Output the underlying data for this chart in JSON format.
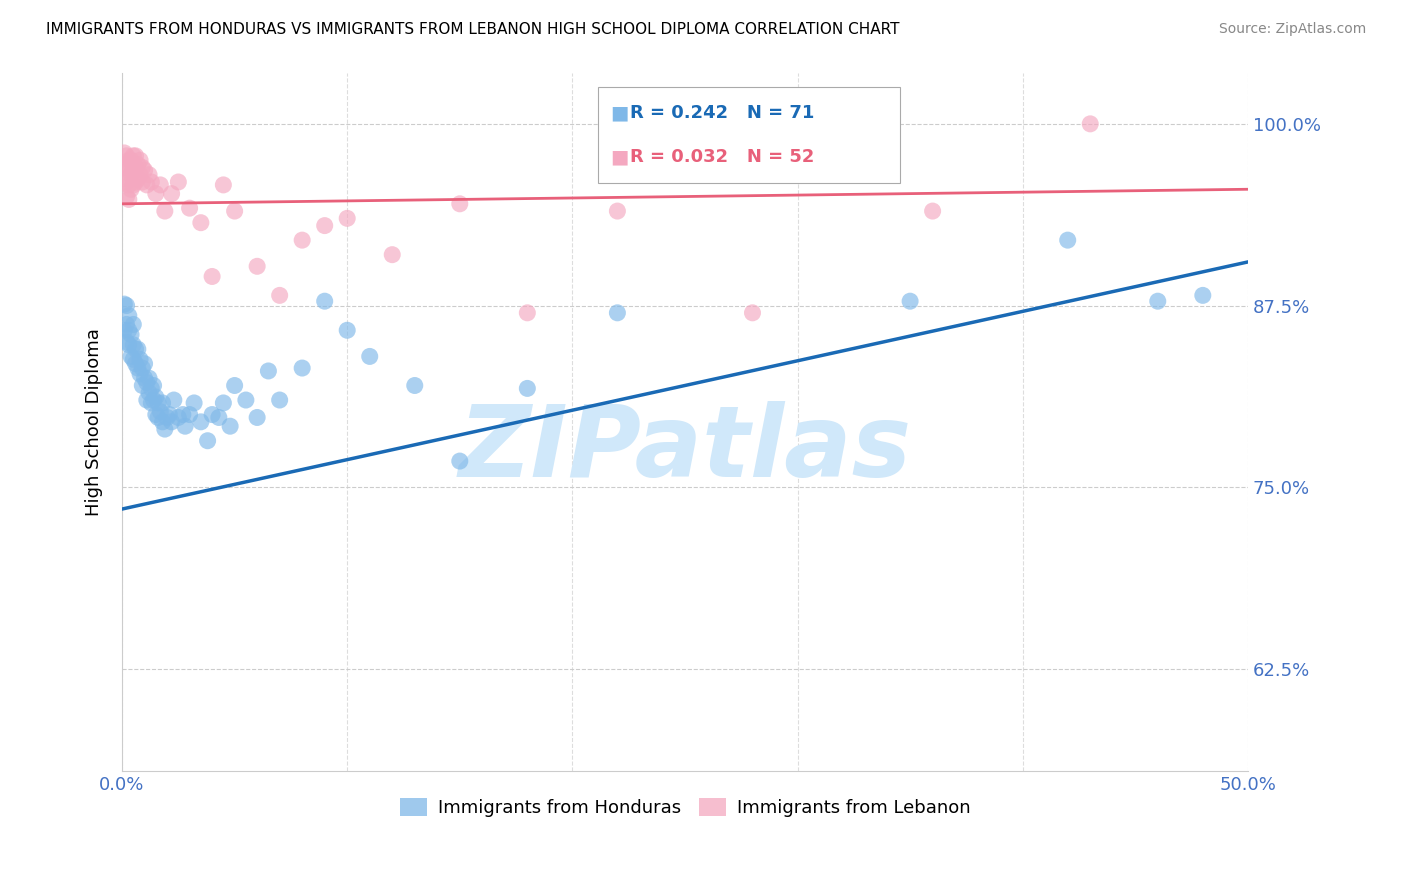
{
  "title": "IMMIGRANTS FROM HONDURAS VS IMMIGRANTS FROM LEBANON HIGH SCHOOL DIPLOMA CORRELATION CHART",
  "source": "Source: ZipAtlas.com",
  "ylabel": "High School Diploma",
  "xlim": [
    0.0,
    0.5
  ],
  "ylim": [
    0.555,
    1.035
  ],
  "xtick_positions": [
    0.0,
    0.1,
    0.2,
    0.3,
    0.4,
    0.5
  ],
  "xticklabels": [
    "0.0%",
    "",
    "",
    "",
    "",
    "50.0%"
  ],
  "ytick_positions": [
    0.625,
    0.75,
    0.875,
    1.0
  ],
  "yticklabels": [
    "62.5%",
    "75.0%",
    "87.5%",
    "100.0%"
  ],
  "legend1_label": "Immigrants from Honduras",
  "legend2_label": "Immigrants from Lebanon",
  "R1": "0.242",
  "N1": "71",
  "R2": "0.032",
  "N2": "52",
  "blue_color": "#7fb8e8",
  "pink_color": "#f4a8c0",
  "blue_line_color": "#1a6ab5",
  "pink_line_color": "#e8607a",
  "axis_label_color": "#4472c4",
  "watermark_text": "ZIPatlas",
  "watermark_color": "#d0e8fa",
  "title_fontsize": 11,
  "blue_line_x0": 0.0,
  "blue_line_y0": 0.735,
  "blue_line_x1": 0.5,
  "blue_line_y1": 0.905,
  "pink_line_x0": 0.0,
  "pink_line_y0": 0.945,
  "pink_line_x1": 0.5,
  "pink_line_y1": 0.955,
  "blue_x": [
    0.001,
    0.001,
    0.002,
    0.002,
    0.002,
    0.003,
    0.003,
    0.003,
    0.004,
    0.004,
    0.005,
    0.005,
    0.005,
    0.006,
    0.006,
    0.007,
    0.007,
    0.008,
    0.008,
    0.009,
    0.009,
    0.01,
    0.01,
    0.011,
    0.011,
    0.012,
    0.012,
    0.013,
    0.013,
    0.014,
    0.014,
    0.015,
    0.015,
    0.016,
    0.016,
    0.017,
    0.018,
    0.018,
    0.019,
    0.02,
    0.021,
    0.022,
    0.023,
    0.025,
    0.027,
    0.028,
    0.03,
    0.032,
    0.035,
    0.038,
    0.04,
    0.043,
    0.045,
    0.048,
    0.05,
    0.055,
    0.06,
    0.065,
    0.07,
    0.08,
    0.09,
    0.1,
    0.11,
    0.13,
    0.15,
    0.18,
    0.22,
    0.35,
    0.42,
    0.46,
    0.48
  ],
  "blue_y": [
    0.876,
    0.858,
    0.862,
    0.875,
    0.85,
    0.868,
    0.858,
    0.848,
    0.855,
    0.84,
    0.838,
    0.848,
    0.862,
    0.835,
    0.845,
    0.832,
    0.845,
    0.838,
    0.828,
    0.832,
    0.82,
    0.825,
    0.835,
    0.822,
    0.81,
    0.825,
    0.815,
    0.818,
    0.808,
    0.82,
    0.81,
    0.812,
    0.8,
    0.808,
    0.798,
    0.802,
    0.808,
    0.795,
    0.79,
    0.798,
    0.8,
    0.795,
    0.81,
    0.798,
    0.8,
    0.792,
    0.8,
    0.808,
    0.795,
    0.782,
    0.8,
    0.798,
    0.808,
    0.792,
    0.82,
    0.81,
    0.798,
    0.83,
    0.81,
    0.832,
    0.878,
    0.858,
    0.84,
    0.82,
    0.768,
    0.818,
    0.87,
    0.878,
    0.92,
    0.878,
    0.882
  ],
  "pink_x": [
    0.001,
    0.001,
    0.001,
    0.002,
    0.002,
    0.002,
    0.002,
    0.003,
    0.003,
    0.003,
    0.003,
    0.004,
    0.004,
    0.004,
    0.005,
    0.005,
    0.005,
    0.006,
    0.006,
    0.006,
    0.007,
    0.007,
    0.008,
    0.008,
    0.009,
    0.009,
    0.01,
    0.011,
    0.012,
    0.013,
    0.015,
    0.017,
    0.019,
    0.022,
    0.025,
    0.03,
    0.035,
    0.04,
    0.045,
    0.05,
    0.06,
    0.07,
    0.08,
    0.09,
    0.1,
    0.12,
    0.15,
    0.18,
    0.22,
    0.28,
    0.36,
    0.43
  ],
  "pink_y": [
    0.98,
    0.972,
    0.962,
    0.978,
    0.97,
    0.96,
    0.95,
    0.975,
    0.968,
    0.958,
    0.948,
    0.975,
    0.965,
    0.955,
    0.978,
    0.968,
    0.958,
    0.978,
    0.97,
    0.96,
    0.972,
    0.962,
    0.975,
    0.965,
    0.97,
    0.96,
    0.968,
    0.958,
    0.965,
    0.96,
    0.952,
    0.958,
    0.94,
    0.952,
    0.96,
    0.942,
    0.932,
    0.895,
    0.958,
    0.94,
    0.902,
    0.882,
    0.92,
    0.93,
    0.935,
    0.91,
    0.945,
    0.87,
    0.94,
    0.87,
    0.94,
    1.0
  ]
}
